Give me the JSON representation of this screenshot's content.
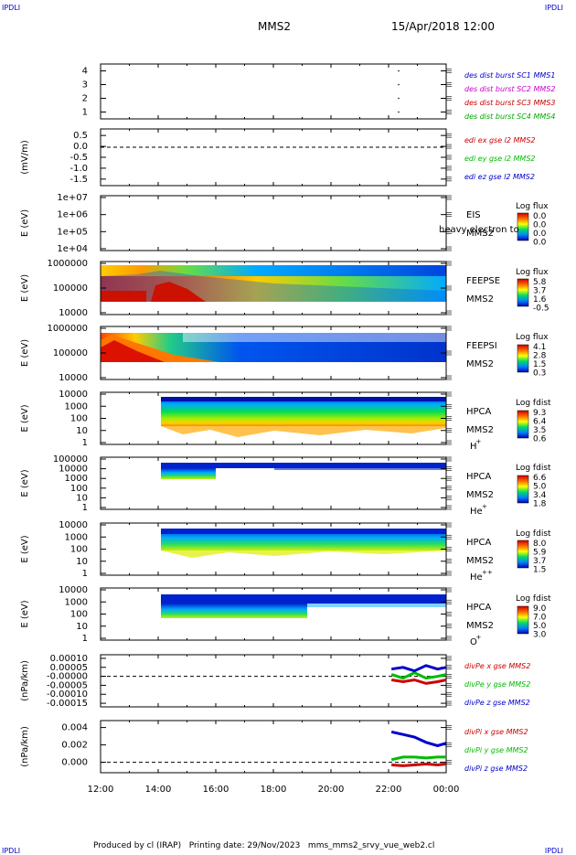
{
  "header": {
    "corner_label": "IPDLI",
    "spacecraft": "MMS2",
    "date": "15/Apr/2018 12:00"
  },
  "footer": {
    "text": "Produced by cl (IRAP)   Printing date: 29/Nov/2023   mms_mms2_srvy_vue_web2.cl"
  },
  "xaxis": {
    "ticks": [
      "12:00",
      "14:00",
      "16:00",
      "18:00",
      "20:00",
      "22:00",
      "00:00"
    ],
    "range_hours": [
      12,
      24
    ]
  },
  "colors": {
    "mms1": "#0000cc",
    "mms2": "#cc00cc",
    "mms3": "#cc0000",
    "mms4": "#00aa00",
    "x": "#cc0000",
    "y": "#00bb00",
    "z": "#0000cc"
  },
  "chart_data": [
    {
      "type": "scatter",
      "id": "des-dist",
      "ylabel": "",
      "yticks": [
        "4",
        "3",
        "2",
        "1"
      ],
      "ylim": [
        0.5,
        4.5
      ],
      "legend": [
        {
          "text": "des dist burst SC1 MMS1",
          "color": "#0000cc"
        },
        {
          "text": "des dist burst SC2 MMS2",
          "color": "#cc00cc"
        },
        {
          "text": "des dist burst SC3 MMS3",
          "color": "#cc0000"
        },
        {
          "text": "des dist burst SC4 MMS4",
          "color": "#00aa00"
        }
      ],
      "points": [
        {
          "x": 22.35,
          "y": 4
        },
        {
          "x": 22.35,
          "y": 3
        },
        {
          "x": 22.35,
          "y": 2
        },
        {
          "x": 22.35,
          "y": 1
        }
      ]
    },
    {
      "type": "line",
      "id": "edi",
      "ylabel": "(mV/m)",
      "yticks": [
        "0.5",
        "0.0",
        "-0.5",
        "-1.0",
        "-1.5"
      ],
      "ytick_values": [
        0.5,
        0.0,
        -0.5,
        -1.0,
        -1.5
      ],
      "ylim": [
        -1.8,
        0.8
      ],
      "zero_line": true,
      "legend": [
        {
          "text": "edi ex gse l2 MMS2",
          "color": "#cc0000"
        },
        {
          "text": "edi ey gse l2 MMS2",
          "color": "#00bb00"
        },
        {
          "text": "edi ez gse l2 MMS2",
          "color": "#0000cc"
        }
      ]
    },
    {
      "type": "heatmap",
      "id": "eis",
      "ylabel": "E (eV)",
      "yticks": [
        "1e+07",
        "1e+06",
        "1e+05",
        "1e+04"
      ],
      "instrument": "EIS",
      "sc": "MMS2",
      "overlay_text": "heavy electron to",
      "colorbar": {
        "title": "Log flux",
        "ticks": [
          "0.0",
          "0.0",
          "0.0",
          "0.0"
        ]
      }
    },
    {
      "type": "heatmap",
      "id": "feepse",
      "ylabel": "E (eV)",
      "yticks": [
        "1000000",
        "100000",
        "10000"
      ],
      "instrument": "FEEPSE",
      "sc": "MMS2",
      "colorbar": {
        "title": "Log flux",
        "ticks": [
          "5.8",
          "3.7",
          "1.6",
          "-0.5"
        ]
      }
    },
    {
      "type": "heatmap",
      "id": "feepsi",
      "ylabel": "E (eV)",
      "yticks": [
        "1000000",
        "100000",
        "10000"
      ],
      "instrument": "FEEPSI",
      "sc": "MMS2",
      "colorbar": {
        "title": "Log flux",
        "ticks": [
          "4.1",
          "2.8",
          "1.5",
          "0.3"
        ]
      }
    },
    {
      "type": "heatmap",
      "id": "hpca-h",
      "ylabel": "E (eV)",
      "yticks": [
        "10000",
        "1000",
        "100",
        "10",
        "1"
      ],
      "instrument": "HPCA",
      "sc": "MMS2",
      "species": "H",
      "charge": "+",
      "colorbar": {
        "title": "Log fdist",
        "ticks": [
          "9.3",
          "6.4",
          "3.5",
          "0.6"
        ]
      }
    },
    {
      "type": "heatmap",
      "id": "hpca-he",
      "ylabel": "E (eV)",
      "yticks": [
        "100000",
        "10000",
        "1000",
        "100",
        "10",
        "1"
      ],
      "instrument": "HPCA",
      "sc": "MMS2",
      "species": "He",
      "charge": "+",
      "colorbar": {
        "title": "Log fdist",
        "ticks": [
          "6.6",
          "5.0",
          "3.4",
          "1.8"
        ]
      }
    },
    {
      "type": "heatmap",
      "id": "hpca-he2",
      "ylabel": "E (eV)",
      "yticks": [
        "10000",
        "1000",
        "100",
        "10",
        "1"
      ],
      "instrument": "HPCA",
      "sc": "MMS2",
      "species": "He",
      "charge": "++",
      "colorbar": {
        "title": "Log fdist",
        "ticks": [
          "8.0",
          "5.9",
          "3.7",
          "1.5"
        ]
      }
    },
    {
      "type": "heatmap",
      "id": "hpca-o",
      "ylabel": "E (eV)",
      "yticks": [
        "10000",
        "1000",
        "100",
        "10",
        "1"
      ],
      "instrument": "HPCA",
      "sc": "MMS2",
      "species": "O",
      "charge": "+",
      "colorbar": {
        "title": "Log fdist",
        "ticks": [
          "9.0",
          "7.0",
          "5.0",
          "3.0"
        ]
      }
    },
    {
      "type": "line",
      "id": "divpe",
      "ylabel": "(nPa/km)",
      "yticks": [
        "0.00010",
        "0.00005",
        "-0.00000",
        "-0.00005",
        "-0.00010",
        "-0.00015"
      ],
      "ytick_values": [
        0.0001,
        5e-05,
        0,
        -5e-05,
        -0.0001,
        -0.00015
      ],
      "ylim": [
        -0.00017,
        0.00012
      ],
      "zero_line": true,
      "legend": [
        {
          "text": "divPe x gse MMS2",
          "color": "#cc0000"
        },
        {
          "text": "divPe y gse MMS2",
          "color": "#00bb00"
        },
        {
          "text": "divPe z gse MMS2",
          "color": "#0000cc"
        }
      ],
      "series": [
        {
          "name": "divPe x gse MMS2",
          "x": [
            22.1,
            22.5,
            22.9,
            23.3,
            23.7,
            24.0
          ],
          "values": [
            -2e-05,
            -3e-05,
            -2e-05,
            -4e-05,
            -3e-05,
            -2e-05
          ]
        },
        {
          "name": "divPe y gse MMS2",
          "x": [
            22.1,
            22.5,
            22.9,
            23.3,
            23.7,
            24.0
          ],
          "values": [
            1e-05,
            -1e-05,
            2e-05,
            -1e-05,
            0.0,
            1e-05
          ]
        },
        {
          "name": "divPe z gse MMS2",
          "x": [
            22.1,
            22.5,
            22.9,
            23.3,
            23.7,
            24.0
          ],
          "values": [
            4e-05,
            5e-05,
            3e-05,
            6e-05,
            4e-05,
            5e-05
          ]
        }
      ]
    },
    {
      "type": "line",
      "id": "divpi",
      "ylabel": "(nPa/km)",
      "yticks": [
        "0.004",
        "0.002",
        "0.000"
      ],
      "ytick_values": [
        0.004,
        0.002,
        0.0
      ],
      "ylim": [
        -0.0012,
        0.0048
      ],
      "zero_line": true,
      "legend": [
        {
          "text": "divPi x gse MMS2",
          "color": "#cc0000"
        },
        {
          "text": "divPi y gse MMS2",
          "color": "#00bb00"
        },
        {
          "text": "divPi z gse MMS2",
          "color": "#0000cc"
        }
      ],
      "series": [
        {
          "name": "divPi x gse MMS2",
          "x": [
            22.1,
            22.5,
            22.9,
            23.3,
            23.7,
            24.0
          ],
          "values": [
            -0.0003,
            -0.0004,
            -0.0003,
            -0.0002,
            -0.0003,
            -0.0002
          ]
        },
        {
          "name": "divPi y gse MMS2",
          "x": [
            22.1,
            22.5,
            22.9,
            23.3,
            23.7,
            24.0
          ],
          "values": [
            0.0003,
            0.0006,
            0.0006,
            0.0005,
            0.0006,
            0.0006
          ]
        },
        {
          "name": "divPi z gse MMS2",
          "x": [
            22.1,
            22.5,
            22.9,
            23.3,
            23.7,
            24.0
          ],
          "values": [
            0.0035,
            0.0032,
            0.0029,
            0.0023,
            0.0019,
            0.0022
          ]
        }
      ]
    }
  ]
}
